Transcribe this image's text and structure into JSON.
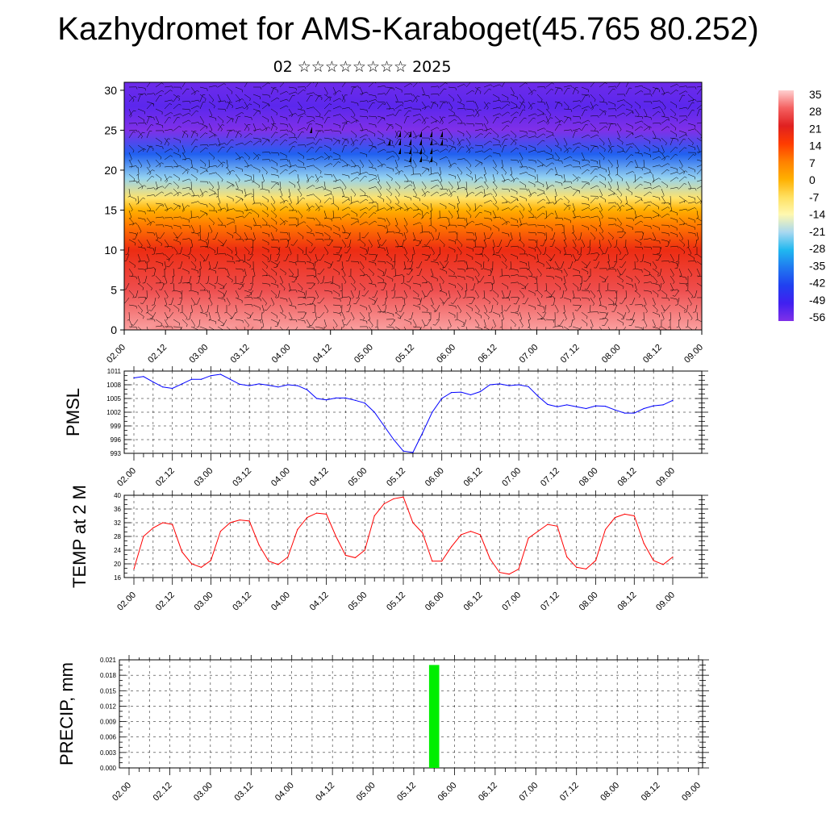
{
  "title": "Kazhydromet for AMS-Karaboget(45.765 80.252)",
  "subtitle": "02 ☆☆☆☆☆☆☆☆ 2025",
  "colors": {
    "pmsl_line": "#0000ff",
    "temp_line": "#ff0000",
    "precip_bar": "#00ee00",
    "wind_barb": "#000000"
  },
  "chart_data": [
    {
      "type": "heatmap",
      "name_hint": "vertical cross-section, temperature shading with wind barbs",
      "x_ticks": [
        "02.00",
        "02.12",
        "03.00",
        "03.12",
        "04.00",
        "04.12",
        "05.00",
        "05.12",
        "06.00",
        "06.12",
        "07.00",
        "07.12",
        "08.00",
        "08.12",
        "09.00"
      ],
      "y_ticks": [
        "0",
        "5",
        "10",
        "15",
        "20",
        "25",
        "30"
      ],
      "ylim": [
        0,
        31
      ],
      "colorbar": {
        "labels": [
          "35",
          "28",
          "21",
          "14",
          "7",
          "0",
          "-7",
          "-14",
          "-21",
          "-28",
          "-35",
          "-42",
          "-49",
          "-56"
        ],
        "colors": [
          "#ffd0d0",
          "#f46060",
          "#e02020",
          "#ff3c00",
          "#ff8000",
          "#ffb000",
          "#ffe060",
          "#fff8b0",
          "#a8d8f0",
          "#20b8f0",
          "#2078f0",
          "#2040f0",
          "#4020f0",
          "#8030e8"
        ]
      },
      "temperature_profile": [
        {
          "h": 0,
          "t": 32
        },
        {
          "h": 5,
          "t": 26
        },
        {
          "h": 10,
          "t": 18
        },
        {
          "h": 13,
          "t": 8
        },
        {
          "h": 15,
          "t": 0
        },
        {
          "h": 16.5,
          "t": -8
        },
        {
          "h": 19,
          "t": -22
        },
        {
          "h": 22,
          "t": -38
        },
        {
          "h": 25,
          "t": -56
        },
        {
          "h": 28,
          "t": -52
        },
        {
          "h": 31,
          "t": -54
        }
      ]
    },
    {
      "type": "line",
      "ylabel": "PMSL",
      "x_ticks": [
        "02.00",
        "02.12",
        "03.00",
        "03.12",
        "04.00",
        "04.12",
        "05.00",
        "05.12",
        "06.00",
        "06.12",
        "07.00",
        "07.12",
        "08.00",
        "08.12",
        "09.00"
      ],
      "y_ticks": [
        "993",
        "996",
        "999",
        "1002",
        "1005",
        "1008",
        "1011"
      ],
      "ylim": [
        993,
        1011
      ],
      "xlim": [
        0,
        168
      ],
      "series": [
        {
          "x": [
            0,
            3,
            6,
            9,
            12,
            15,
            18,
            21,
            24,
            27,
            30,
            33,
            36,
            39,
            42,
            45,
            48,
            51,
            54,
            57,
            60,
            63,
            66,
            69,
            72,
            75,
            78,
            81,
            84,
            87,
            90,
            93,
            96,
            99,
            102,
            105,
            108,
            111,
            114,
            117,
            120,
            123,
            126,
            129,
            132,
            135,
            138,
            141,
            144,
            147,
            150,
            153,
            156,
            159,
            162,
            165,
            168
          ],
          "values": [
            1009.5,
            1009.8,
            1008.6,
            1007.5,
            1007.2,
            1008.2,
            1009.2,
            1009.2,
            1010.0,
            1010.3,
            1009.2,
            1008.1,
            1007.8,
            1008.2,
            1007.9,
            1007.5,
            1008.0,
            1007.8,
            1006.9,
            1005.0,
            1004.7,
            1005.1,
            1005.1,
            1004.6,
            1004.0,
            1002.0,
            999.0,
            996.0,
            993.5,
            993.2,
            997.5,
            1002.0,
            1005.0,
            1006.3,
            1006.4,
            1005.8,
            1006.5,
            1008.0,
            1008.2,
            1007.8,
            1008.0,
            1007.6,
            1005.5,
            1003.7,
            1003.2,
            1003.6,
            1003.2,
            1002.8,
            1003.4,
            1003.3,
            1002.5,
            1001.8,
            1001.8,
            1002.8,
            1003.4,
            1003.6,
            1004.6
          ]
        }
      ]
    },
    {
      "type": "line",
      "ylabel": "TEMP at 2 M",
      "x_ticks": [
        "02.00",
        "02.12",
        "03.00",
        "03.12",
        "04.00",
        "04.12",
        "05.00",
        "05.12",
        "06.00",
        "06.12",
        "07.00",
        "07.12",
        "08.00",
        "08.12",
        "09.00"
      ],
      "y_ticks": [
        "16",
        "20",
        "24",
        "28",
        "32",
        "36",
        "40"
      ],
      "ylim": [
        16,
        40
      ],
      "xlim": [
        0,
        168
      ],
      "series": [
        {
          "x": [
            0,
            3,
            6,
            9,
            12,
            15,
            18,
            21,
            24,
            27,
            30,
            33,
            36,
            39,
            42,
            45,
            48,
            51,
            54,
            57,
            60,
            63,
            66,
            69,
            72,
            75,
            78,
            81,
            84,
            87,
            90,
            93,
            96,
            99,
            102,
            105,
            108,
            111,
            114,
            117,
            120,
            123,
            126,
            129,
            132,
            135,
            138,
            141,
            144,
            147,
            150,
            153,
            156,
            159,
            162,
            165,
            168
          ],
          "values": [
            18.5,
            28.0,
            30.5,
            32.0,
            31.5,
            23.5,
            20.0,
            19.0,
            21.0,
            29.5,
            32.0,
            32.8,
            32.5,
            25.5,
            20.8,
            19.8,
            22.0,
            30.0,
            33.5,
            34.8,
            34.5,
            28.0,
            22.5,
            21.8,
            24.0,
            34.0,
            37.5,
            39.0,
            39.5,
            32.0,
            29.0,
            20.8,
            20.8,
            25.0,
            28.5,
            29.5,
            28.5,
            21.5,
            17.5,
            17.0,
            18.5,
            27.5,
            29.5,
            31.5,
            31.0,
            22.0,
            19.0,
            18.5,
            21.0,
            30.0,
            33.5,
            34.5,
            34.0,
            26.0,
            21.0,
            19.8,
            22.0
          ]
        }
      ]
    },
    {
      "type": "bar",
      "ylabel": "PRECIP, mm",
      "x_ticks": [
        "02.00",
        "02.12",
        "03.00",
        "03.12",
        "04.00",
        "04.12",
        "05.00",
        "05.12",
        "06.00",
        "06.12",
        "07.00",
        "07.12",
        "08.00",
        "08.12",
        "09.00"
      ],
      "y_ticks": [
        "0.000",
        "0.003",
        "0.006",
        "0.009",
        "0.012",
        "0.015",
        "0.018",
        "0.021"
      ],
      "ylim": [
        0,
        0.021
      ],
      "xlim": [
        0,
        168
      ],
      "bars": [
        {
          "x": 90,
          "width": 3,
          "value": 0.02
        }
      ]
    }
  ]
}
